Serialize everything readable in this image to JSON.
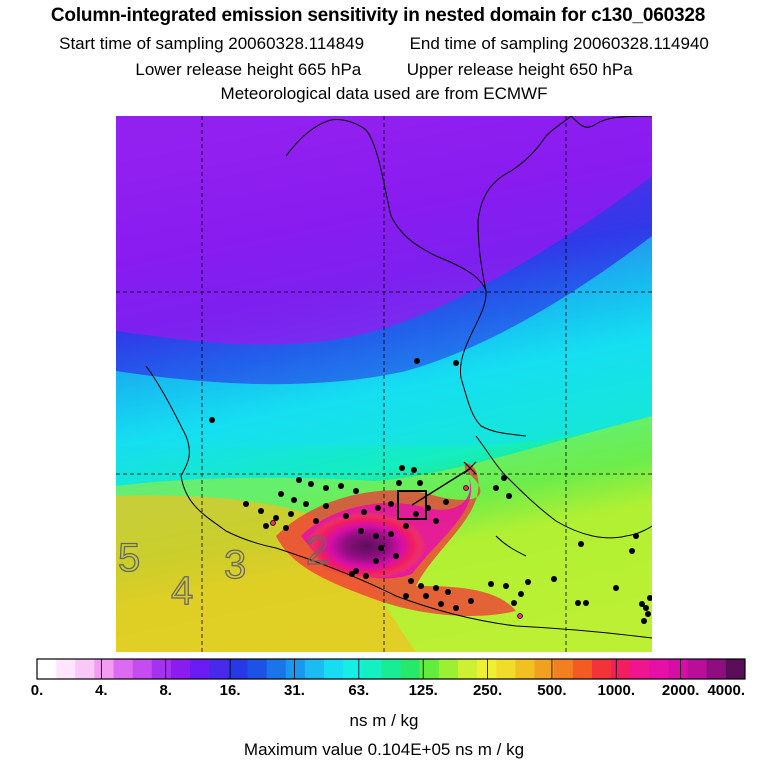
{
  "title": "Column-integrated emission sensitivity in nested domain for c130_060328",
  "sampling": {
    "start_label": "Start time of sampling",
    "start_value": "20060328.114849",
    "end_label": "End time of sampling",
    "end_value": "20060328.114940"
  },
  "release": {
    "lower_label": "Lower release height",
    "lower_value": "665 hPa",
    "upper_label": "Upper release height",
    "upper_value": "650 hPa"
  },
  "met_note": "Meteorological data used are from ECMWF",
  "map": {
    "day_labels": [
      "5",
      "4",
      "3",
      "2"
    ],
    "colors": {
      "far": "#8e1cf0",
      "mid": "#16e8f0",
      "near": "#e6f23a",
      "core": "#6a0f6a"
    }
  },
  "colorbar": {
    "ticks": [
      "0.",
      "4.",
      "8.",
      "16.",
      "31.",
      "63.",
      "125.",
      "250.",
      "500.",
      "1000.",
      "2000.",
      "4000."
    ],
    "swatches": [
      "#ffffff",
      "#fde6fd",
      "#f9c8f9",
      "#f29cf2",
      "#dd6af2",
      "#c44cf0",
      "#a532ee",
      "#8a1cf0",
      "#6a1cf2",
      "#4a2aea",
      "#2838e6",
      "#1c52e6",
      "#1a74ea",
      "#1a98f0",
      "#1cbcf2",
      "#18dcf4",
      "#14eee6",
      "#14f0c2",
      "#18ec96",
      "#28e86c",
      "#62ec40",
      "#9cf034",
      "#cef032",
      "#eef034",
      "#f2dc2a",
      "#f2c020",
      "#f2a020",
      "#f28020",
      "#f25c22",
      "#f23438",
      "#f21e60",
      "#f0148e",
      "#e610a8",
      "#d60ea8",
      "#b80e9a",
      "#8e0e80",
      "#5a0e5a"
    ],
    "units": "ns m / kg"
  },
  "max_label": "Maximum value  0.104E+05 ns m / kg"
}
